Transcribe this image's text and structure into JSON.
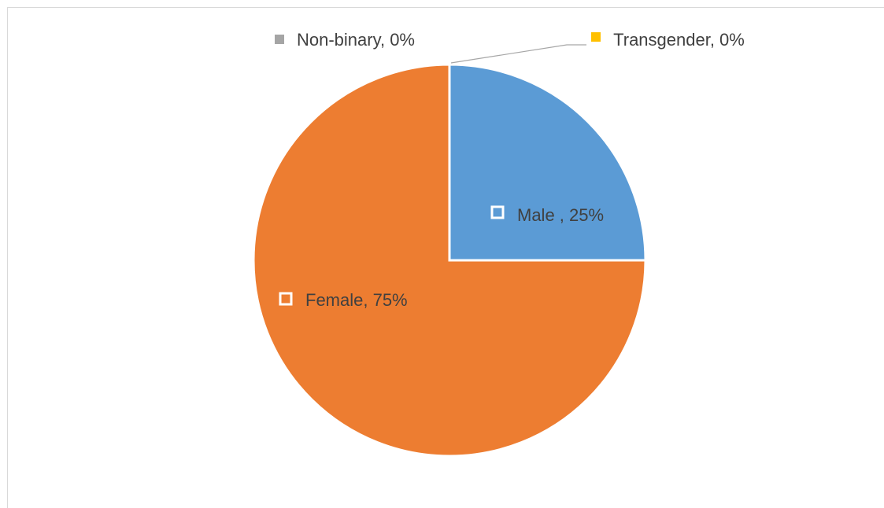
{
  "chart_data": {
    "type": "pie",
    "values": [
      25,
      75,
      0,
      0
    ],
    "value_labels": [
      "Male , 25%",
      "Female, 75%",
      "Non-binary, 0%",
      "Transgender, 0%"
    ],
    "colors": [
      "#5b9bd5",
      "#ed7d31",
      "#a5a5a5",
      "#ffc000"
    ]
  }
}
